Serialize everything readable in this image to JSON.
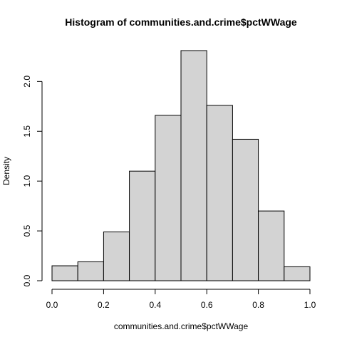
{
  "chart_data": {
    "type": "bar",
    "title": "Histogram of communities.and.crime$pctWWage",
    "xlabel": "communities.and.crime$pctWWage",
    "ylabel": "Density",
    "bins": [
      {
        "start": 0.0,
        "end": 0.1,
        "density": 0.15
      },
      {
        "start": 0.1,
        "end": 0.2,
        "density": 0.19
      },
      {
        "start": 0.2,
        "end": 0.3,
        "density": 0.49
      },
      {
        "start": 0.3,
        "end": 0.4,
        "density": 1.1
      },
      {
        "start": 0.4,
        "end": 0.5,
        "density": 1.66
      },
      {
        "start": 0.5,
        "end": 0.6,
        "density": 2.31
      },
      {
        "start": 0.6,
        "end": 0.7,
        "density": 1.76
      },
      {
        "start": 0.7,
        "end": 0.8,
        "density": 1.42
      },
      {
        "start": 0.8,
        "end": 0.9,
        "density": 0.7
      },
      {
        "start": 0.9,
        "end": 1.0,
        "density": 0.14
      }
    ],
    "xlim": [
      0.0,
      1.0
    ],
    "ylim": [
      0.0,
      2.31
    ],
    "xticks": [
      "0.0",
      "0.2",
      "0.4",
      "0.6",
      "0.8",
      "1.0"
    ],
    "yticks": [
      "0.0",
      "0.5",
      "1.0",
      "1.5",
      "2.0"
    ],
    "grid": false,
    "bar_color": "#d3d3d3",
    "edge_color": "#000000"
  }
}
